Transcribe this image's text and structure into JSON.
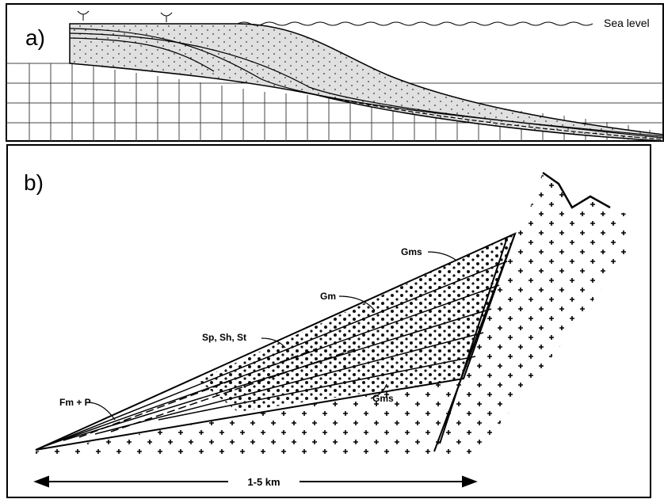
{
  "panel_a": {
    "label": "a)",
    "sea_level": "Sea level"
  },
  "panel_b": {
    "label": "b)",
    "facies": [
      "Gms",
      "Gm",
      "Sp, Sh, St",
      "Fm + P",
      "Gms"
    ],
    "scale": "1-5 km"
  }
}
